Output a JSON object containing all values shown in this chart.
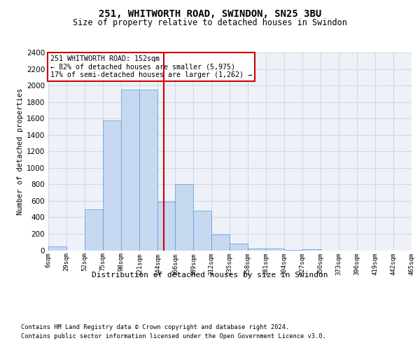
{
  "title": "251, WHITWORTH ROAD, SWINDON, SN25 3BU",
  "subtitle": "Size of property relative to detached houses in Swindon",
  "xlabel": "Distribution of detached houses by size in Swindon",
  "ylabel": "Number of detached properties",
  "footer_line1": "Contains HM Land Registry data © Crown copyright and database right 2024.",
  "footer_line2": "Contains public sector information licensed under the Open Government Licence v3.0.",
  "annotation_title": "251 WHITWORTH ROAD: 152sqm",
  "annotation_line1": "← 82% of detached houses are smaller (5,975)",
  "annotation_line2": "17% of semi-detached houses are larger (1,262) →",
  "bar_color": "#c5d8f0",
  "bar_edge_color": "#5b9bd5",
  "vline_color": "#cc0000",
  "vline_x": 152,
  "annotation_box_color": "#ffffff",
  "annotation_box_edge": "#cc0000",
  "bin_edges": [
    6,
    29,
    52,
    75,
    98,
    121,
    144,
    166,
    189,
    212,
    235,
    258,
    281,
    304,
    327,
    350,
    373,
    396,
    419,
    442,
    465
  ],
  "bin_heights": [
    50,
    0,
    500,
    1580,
    1950,
    1950,
    590,
    800,
    480,
    190,
    80,
    25,
    20,
    5,
    10,
    0,
    0,
    0,
    0,
    0
  ],
  "ylim": [
    0,
    2400
  ],
  "yticks": [
    0,
    200,
    400,
    600,
    800,
    1000,
    1200,
    1400,
    1600,
    1800,
    2000,
    2200,
    2400
  ],
  "tick_labels": [
    "6sqm",
    "29sqm",
    "52sqm",
    "75sqm",
    "98sqm",
    "121sqm",
    "144sqm",
    "166sqm",
    "189sqm",
    "212sqm",
    "235sqm",
    "258sqm",
    "281sqm",
    "304sqm",
    "327sqm",
    "350sqm",
    "373sqm",
    "396sqm",
    "419sqm",
    "442sqm",
    "465sqm"
  ],
  "grid_color": "#d0d8e8",
  "background_color": "#eef2f8",
  "fig_background": "#ffffff"
}
